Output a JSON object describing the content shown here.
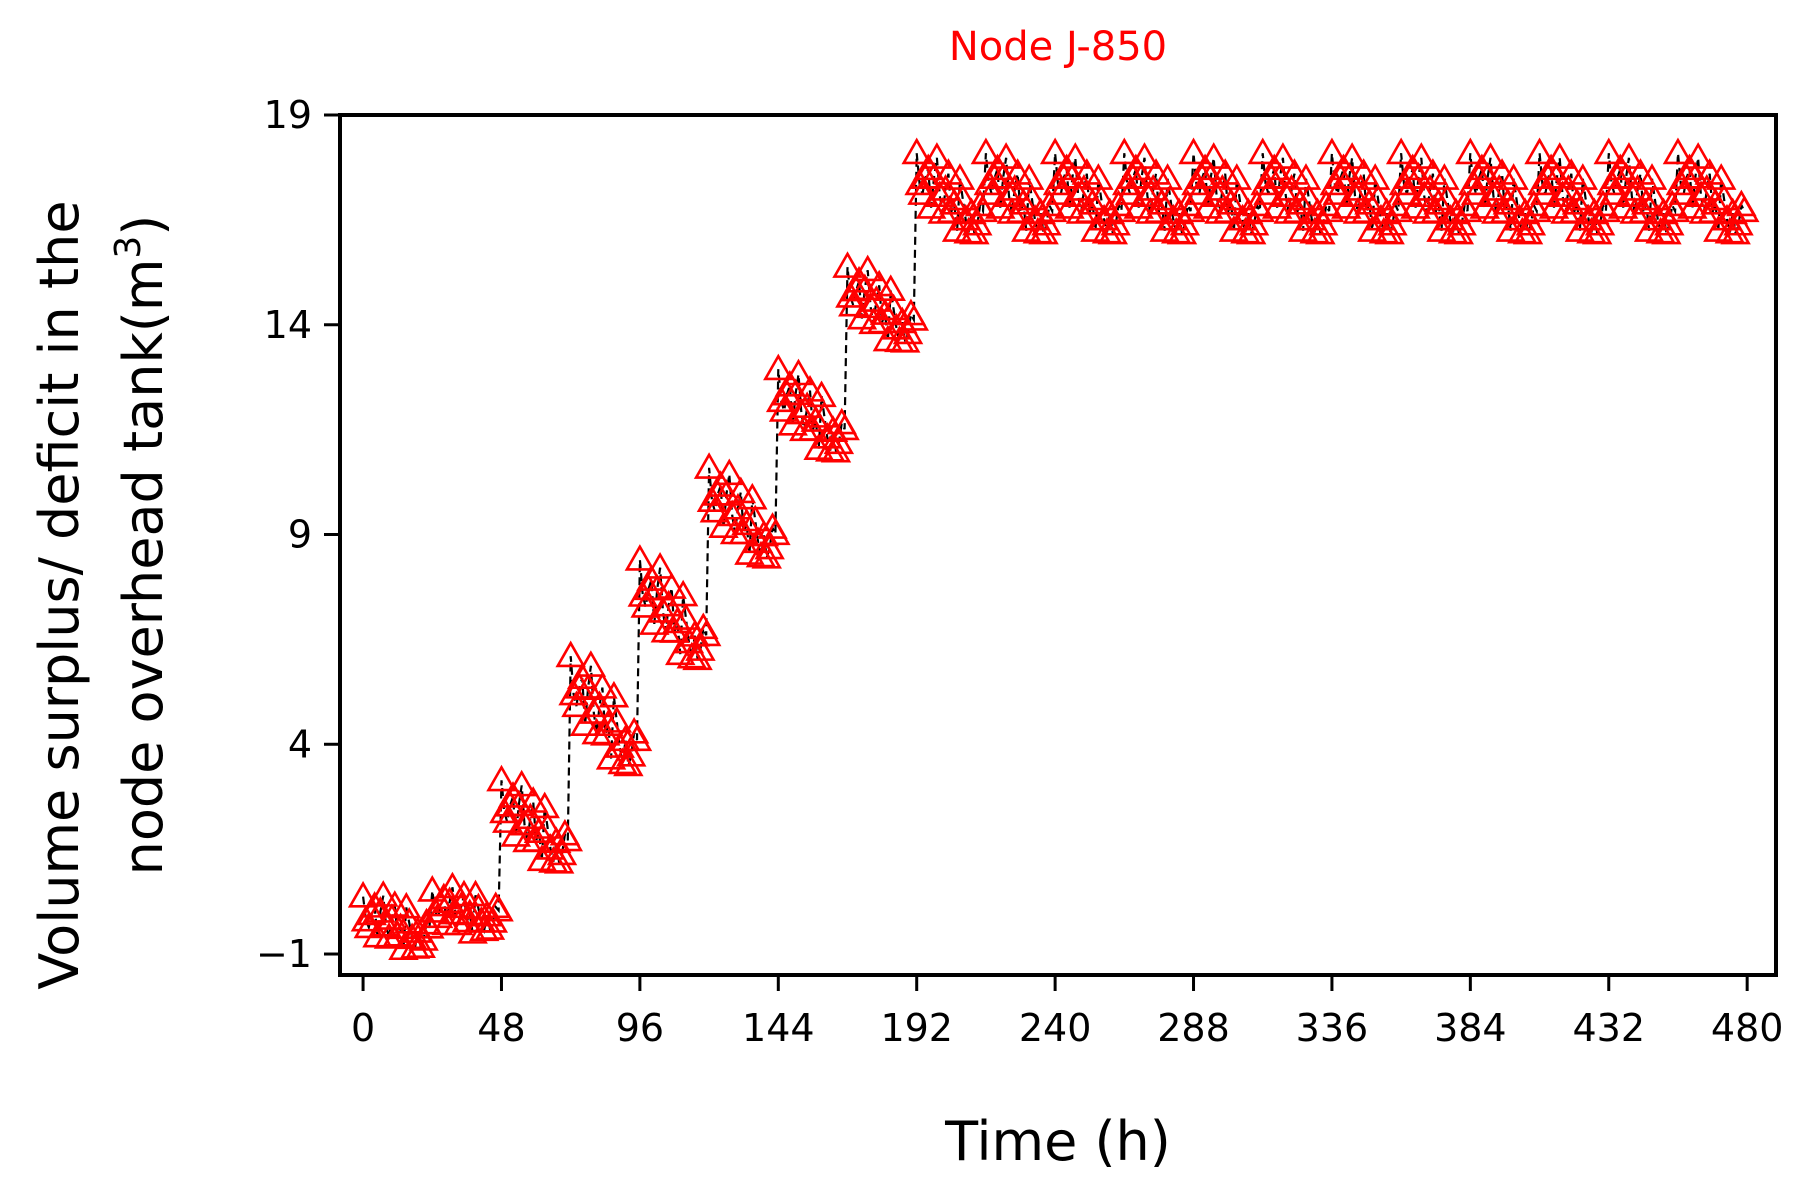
{
  "chart_data": {
    "type": "scatter",
    "title": "Node J-850",
    "xlabel": "Time (h)",
    "ylabel_line1": "Volume surplus/ deficit in the",
    "ylabel_line2": "node overhead tank(m",
    "ylabel_sup": "3",
    "ylabel_close": ")",
    "xlim": [
      -8,
      490
    ],
    "ylim": [
      -1.5,
      19
    ],
    "xticks": [
      0,
      48,
      96,
      144,
      192,
      240,
      288,
      336,
      384,
      432,
      480
    ],
    "yticks": [
      -1,
      4,
      9,
      14,
      19
    ],
    "ytick_labels": [
      "−1",
      "4",
      "9",
      "14",
      "19"
    ],
    "marker": "open-triangle",
    "marker_color": "#ff0000",
    "title_color": "#ff0000",
    "line_color": "#000000",
    "line_style": "dashed",
    "grid": false,
    "day_start_values": [
      -0.3,
      0.1,
      1.8,
      4.2,
      6.7,
      9.1,
      11.6,
      14.2,
      16.8,
      16.8,
      16.8,
      16.8,
      16.8,
      16.8,
      16.8,
      16.8,
      16.8,
      16.8,
      16.8,
      16.8
    ],
    "day_delta_values": [
      0.6,
      0.35,
      1.25,
      1.8,
      1.6,
      1.4,
      1.25,
      1.1,
      1.2,
      1.2,
      1.2,
      1.2,
      1.2,
      1.2,
      1.2,
      1.2,
      1.2,
      1.2,
      1.2,
      1.2
    ],
    "hourly_profile": [
      0.05,
      -0.35,
      -0.45,
      -0.2,
      -0.05,
      -0.55,
      -0.1,
      0.2,
      -0.3,
      -0.5,
      -0.15,
      0.1,
      -0.4,
      -0.25,
      -0.6,
      0.15,
      -0.1,
      -0.35,
      -0.5,
      -0.2,
      -0.45,
      -0.3,
      0.0,
      -0.05
    ]
  }
}
